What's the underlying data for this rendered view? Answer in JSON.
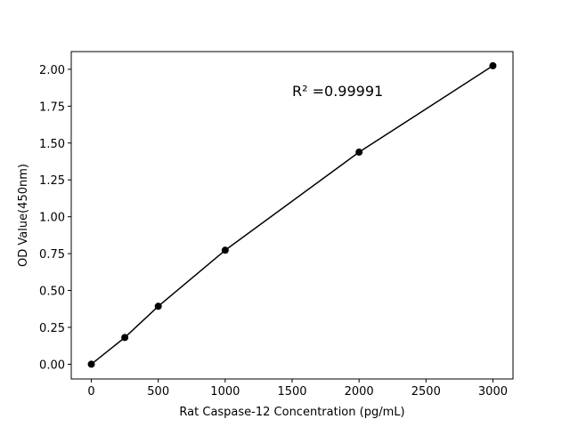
{
  "chart_data": {
    "type": "scatter",
    "x_label": "Rat Caspase-12 Concentration (pg/mL)",
    "y_label": "OD Value(450nm)",
    "annotation": "R² =0.99991",
    "x": [
      0,
      250,
      500,
      1000,
      2000,
      3000
    ],
    "series": [
      {
        "color": "#000000",
        "values": [
          0,
          0.181,
          0.393,
          0.773,
          1.438,
          2.024
        ]
      }
    ],
    "xlim": [
      -150,
      3150
    ],
    "xticks": [
      0,
      500,
      1000,
      1500,
      2000,
      2500,
      3000
    ],
    "ylim": [
      -0.1,
      2.12
    ],
    "yticks": [
      {
        "value": 0,
        "label": "0.00"
      },
      {
        "value": 0.25,
        "label": "0.25"
      },
      {
        "value": 0.5,
        "label": "0.50"
      },
      {
        "value": 0.75,
        "label": "0.75"
      },
      {
        "value": 1,
        "label": "1.00"
      },
      {
        "value": 1.25,
        "label": "1.25"
      },
      {
        "value": 1.5,
        "label": "1.50"
      },
      {
        "value": 1.75,
        "label": "1.75"
      },
      {
        "value": 2,
        "label": "2.00"
      }
    ],
    "grid": false
  }
}
